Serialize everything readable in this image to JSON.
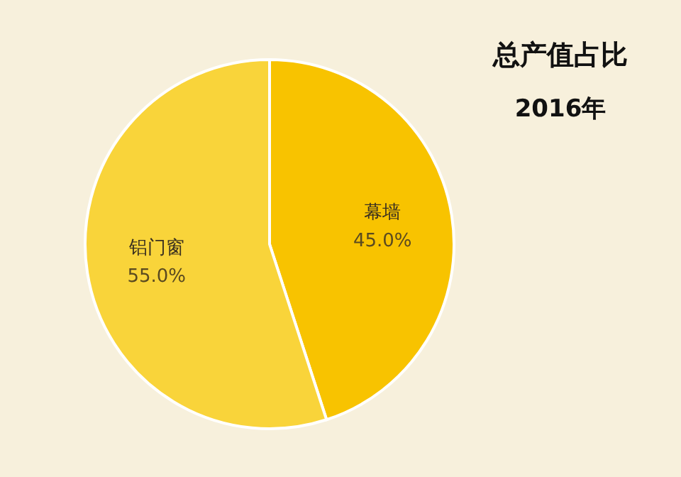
{
  "chart_data": {
    "type": "pie",
    "title": "总产值占比",
    "subtitle": "2016年",
    "categories": [
      "幕墙",
      "铝门窗"
    ],
    "values": [
      45.0,
      55.0
    ],
    "value_labels": [
      "45.0%",
      "55.0%"
    ],
    "colors": [
      "#f8c300",
      "#f9d43a"
    ]
  }
}
